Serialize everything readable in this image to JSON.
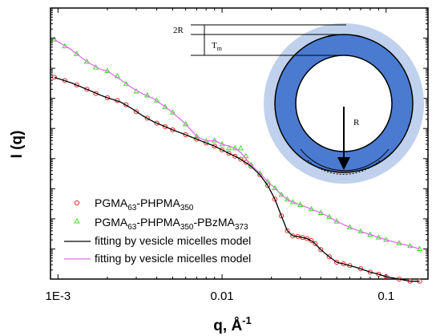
{
  "chart_data": {
    "type": "scatter",
    "x_scale": "log",
    "y_scale": "log",
    "xlim": [
      0.0009,
      0.18
    ],
    "ylim": [
      0.001,
      1000000
    ],
    "x_ticks": [
      {
        "value": 0.001,
        "label": "1E-3"
      },
      {
        "value": 0.01,
        "label": "0.01"
      },
      {
        "value": 0.1,
        "label": "0.1"
      }
    ],
    "xlabel": {
      "main": "q, ",
      "angstrom": "Å",
      "sup": "-1"
    },
    "ylabel": "I (q)",
    "grid": false,
    "legend_position": "bottom-left",
    "series": [
      {
        "name": "PGMA63-PHPMA350",
        "legend_parts": [
          [
            "PGMA",
            ""
          ],
          [
            "63",
            "sub"
          ],
          [
            "-PHPMA",
            ""
          ],
          [
            "350",
            "sub"
          ]
        ],
        "kind": "scatter",
        "marker": "circle",
        "color": "#e8302a",
        "x": [
          0.00095,
          0.0011,
          0.0013,
          0.0015,
          0.0017,
          0.002,
          0.0023,
          0.0026,
          0.003,
          0.0035,
          0.004,
          0.0045,
          0.005,
          0.006,
          0.007,
          0.008,
          0.009,
          0.01,
          0.011,
          0.012,
          0.013,
          0.014,
          0.015,
          0.017,
          0.019,
          0.021,
          0.023,
          0.025,
          0.027,
          0.029,
          0.031,
          0.033,
          0.035,
          0.037,
          0.04,
          0.045,
          0.05,
          0.055,
          0.06,
          0.07,
          0.08,
          0.09,
          0.1,
          0.12,
          0.14,
          0.16
        ],
        "y": [
          5000,
          3900,
          2800,
          2000,
          1450,
          1050,
          850,
          620,
          360,
          220,
          150,
          115,
          90,
          62,
          44,
          33,
          26,
          19.5,
          15,
          12,
          9.5,
          7.5,
          5.6,
          2.9,
          1.28,
          0.45,
          0.125,
          0.04,
          0.027,
          0.026,
          0.024,
          0.022,
          0.019,
          0.015,
          0.0095,
          0.0055,
          0.0036,
          0.0032,
          0.0028,
          0.0022,
          0.0017,
          0.00145,
          0.0012,
          0.001,
          0.00085,
          0.00085
        ]
      },
      {
        "name": "PGMA63-PHPMA350-PBzMA373",
        "legend_parts": [
          [
            "PGMA",
            ""
          ],
          [
            "63",
            "sub"
          ],
          [
            "-PHPMA",
            ""
          ],
          [
            "350",
            "sub"
          ],
          [
            "-PBzMA",
            ""
          ],
          [
            "373",
            "sub"
          ]
        ],
        "kind": "scatter",
        "marker": "triangle",
        "color": "#3de02a",
        "x": [
          0.00095,
          0.0011,
          0.0013,
          0.0015,
          0.0017,
          0.002,
          0.0023,
          0.0026,
          0.003,
          0.0035,
          0.004,
          0.0045,
          0.005,
          0.006,
          0.007,
          0.008,
          0.009,
          0.01,
          0.011,
          0.012,
          0.013,
          0.014,
          0.015,
          0.017,
          0.019,
          0.021,
          0.023,
          0.025,
          0.027,
          0.03,
          0.035,
          0.04,
          0.045,
          0.05,
          0.06,
          0.07,
          0.08,
          0.09,
          0.1,
          0.12,
          0.14,
          0.16
        ],
        "y": [
          90000,
          54000,
          30000,
          16500,
          10600,
          8100,
          5500,
          3000,
          1700,
          1250,
          850,
          520,
          340,
          140,
          55,
          38,
          40,
          30,
          22,
          22,
          22,
          12,
          6.2,
          3.2,
          1.7,
          1.05,
          0.63,
          0.44,
          0.36,
          0.29,
          0.21,
          0.157,
          0.115,
          0.082,
          0.052,
          0.038,
          0.03,
          0.024,
          0.02,
          0.0155,
          0.0125,
          0.01
        ]
      },
      {
        "name": "fitting by vesicle micelles model",
        "kind": "line",
        "color": "#000000",
        "x": [
          0.00095,
          0.0012,
          0.0015,
          0.0018,
          0.002,
          0.0024,
          0.0028,
          0.0033,
          0.0038,
          0.0045,
          0.005,
          0.006,
          0.007,
          0.008,
          0.009,
          0.01,
          0.011,
          0.012,
          0.013,
          0.015,
          0.017,
          0.019,
          0.021,
          0.023,
          0.025,
          0.027,
          0.029,
          0.031,
          0.033,
          0.036,
          0.04,
          0.045,
          0.05,
          0.055,
          0.06,
          0.07,
          0.08,
          0.09,
          0.1,
          0.12,
          0.14,
          0.16
        ],
        "y": [
          5000,
          3300,
          2000,
          1300,
          1050,
          760,
          470,
          260,
          170,
          115,
          90,
          62,
          44,
          33,
          26,
          19.5,
          15,
          12,
          9.5,
          5.6,
          2.9,
          1.28,
          0.45,
          0.125,
          0.04,
          0.027,
          0.026,
          0.024,
          0.022,
          0.017,
          0.0095,
          0.0055,
          0.0036,
          0.0032,
          0.0028,
          0.0022,
          0.0017,
          0.00145,
          0.0012,
          0.001,
          0.00085,
          0.00085
        ]
      },
      {
        "name": "fitting by vesicle micelles model",
        "kind": "line",
        "color": "#e070e6",
        "x": [
          0.00095,
          0.0012,
          0.0015,
          0.0018,
          0.002,
          0.0024,
          0.0028,
          0.0033,
          0.0038,
          0.0045,
          0.005,
          0.006,
          0.007,
          0.008,
          0.009,
          0.01,
          0.011,
          0.012,
          0.013,
          0.015,
          0.017,
          0.019,
          0.021,
          0.023,
          0.025,
          0.027,
          0.03,
          0.035,
          0.04,
          0.045,
          0.05,
          0.06,
          0.07,
          0.08,
          0.09,
          0.1,
          0.12,
          0.14,
          0.16
        ],
        "y": [
          90000,
          42000,
          16500,
          9400,
          8100,
          4200,
          2300,
          1400,
          1000,
          520,
          340,
          140,
          55,
          38,
          40,
          30,
          26,
          22,
          16,
          6.2,
          3.2,
          1.7,
          1.05,
          0.63,
          0.44,
          0.36,
          0.29,
          0.21,
          0.157,
          0.115,
          0.082,
          0.052,
          0.038,
          0.03,
          0.024,
          0.02,
          0.0155,
          0.0125,
          0.01
        ]
      }
    ],
    "inset": {
      "labels": {
        "two_r": "2R",
        "t_main": "T",
        "t_sub": "m",
        "r": "R"
      },
      "colors": {
        "outer_corona": "#bfd1ec",
        "shell": "#4a7bd0",
        "inner": "#ffffff",
        "outline": "#000000"
      }
    }
  }
}
